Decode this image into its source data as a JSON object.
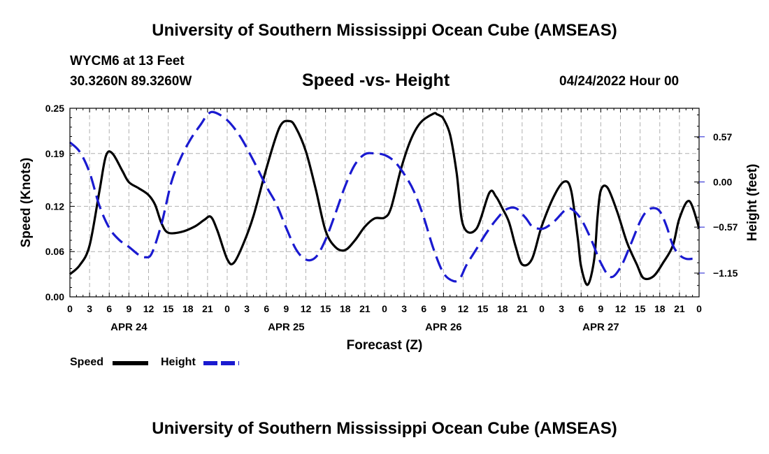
{
  "header": {
    "title": "University of Southern Mississippi Ocean Cube (AMSEAS)",
    "station": "WYCM6 at 13 Feet",
    "coords": "30.3260N  89.3260W",
    "chart_title": "Speed -vs- Height",
    "date": "04/24/2022 Hour 00"
  },
  "footer": {
    "title": "University of Southern Mississippi Ocean Cube (AMSEAS)"
  },
  "legend": {
    "speed_label": "Speed",
    "height_label": "Height"
  },
  "colors": {
    "speed": "#000000",
    "height": "#1a1ad0",
    "grid": "#b0b0b0"
  },
  "chart_data": {
    "type": "line",
    "title": "Speed -vs- Height",
    "xlabel": "Forecast (Z)",
    "ylabel_left": "Speed (Knots)",
    "ylabel_right": "Height (feet)",
    "x_range_hours": [
      0,
      96
    ],
    "x_tick_labels": [
      "0",
      "3",
      "6",
      "9",
      "12",
      "15",
      "18",
      "21",
      "0",
      "3",
      "6",
      "9",
      "12",
      "15",
      "18",
      "21",
      "0",
      "3",
      "6",
      "9",
      "12",
      "15",
      "18",
      "21",
      "0",
      "3",
      "6",
      "9",
      "12",
      "15",
      "18",
      "21",
      "0"
    ],
    "day_labels": [
      {
        "label": "APR 24",
        "hour": 9
      },
      {
        "label": "APR 25",
        "hour": 33
      },
      {
        "label": "APR 26",
        "hour": 57
      },
      {
        "label": "APR 27",
        "hour": 81
      }
    ],
    "left_axis": {
      "ylim": [
        0,
        0.25
      ],
      "ticks": [
        0.0,
        0.06,
        0.12,
        0.19,
        0.25
      ],
      "tick_labels": [
        "0.00",
        "0.06",
        "0.12",
        "0.19",
        "0.25"
      ]
    },
    "right_axis": {
      "ylim": [
        -1.45,
        0.93
      ],
      "ticks": [
        -1.15,
        -0.57,
        0.0,
        0.57
      ],
      "tick_labels": [
        "−1.15",
        "−0.57",
        "0.00",
        "0.57"
      ]
    },
    "grid": true,
    "series": [
      {
        "name": "Speed",
        "axis": "left",
        "style": "solid",
        "x": [
          0,
          1.5,
          3,
          4.5,
          5.5,
          6.5,
          8,
          9,
          10.5,
          12,
          13,
          14,
          15,
          17,
          19,
          20.5,
          21.5,
          22.5,
          24,
          25,
          26.5,
          28,
          30,
          32,
          33.5,
          34.5,
          36,
          37.5,
          39,
          40.5,
          42,
          43.5,
          45,
          46.5,
          48,
          49,
          50.5,
          52,
          53.5,
          55.5,
          56,
          56.5,
          57,
          58,
          59,
          60,
          62,
          64,
          65,
          66,
          67,
          68,
          69,
          70.5,
          72,
          74,
          75.5,
          76.5,
          77.5,
          78,
          79,
          80,
          80.5,
          81,
          82,
          83.5,
          85,
          86.5,
          87.5,
          89,
          90.5,
          92,
          93,
          94.5,
          96
        ],
        "y": [
          0.03,
          0.042,
          0.068,
          0.14,
          0.187,
          0.19,
          0.167,
          0.152,
          0.144,
          0.135,
          0.122,
          0.097,
          0.085,
          0.086,
          0.093,
          0.102,
          0.106,
          0.088,
          0.05,
          0.045,
          0.071,
          0.107,
          0.171,
          0.225,
          0.233,
          0.224,
          0.193,
          0.143,
          0.088,
          0.066,
          0.062,
          0.075,
          0.093,
          0.104,
          0.105,
          0.118,
          0.169,
          0.208,
          0.231,
          0.243,
          0.242,
          0.24,
          0.236,
          0.215,
          0.165,
          0.095,
          0.09,
          0.138,
          0.133,
          0.117,
          0.099,
          0.067,
          0.043,
          0.05,
          0.094,
          0.136,
          0.153,
          0.14,
          0.077,
          0.04,
          0.016,
          0.05,
          0.106,
          0.141,
          0.145,
          0.113,
          0.072,
          0.043,
          0.025,
          0.027,
          0.045,
          0.068,
          0.104,
          0.127,
          0.091
        ]
      },
      {
        "name": "Height",
        "axis": "right",
        "style": "dashed",
        "x": [
          0,
          1.5,
          3,
          4.5,
          6,
          7.5,
          9,
          10.5,
          11.5,
          12.5,
          14,
          15.5,
          17,
          18.5,
          20,
          21,
          22,
          24,
          26,
          28,
          30,
          31.5,
          33,
          34.5,
          36,
          37.5,
          39,
          40.5,
          42,
          43.5,
          45,
          46.5,
          48,
          49.5,
          51,
          52.5,
          54,
          55.5,
          57,
          58.5,
          59.5,
          60.5,
          62,
          63.5,
          65,
          66.5,
          68,
          69.5,
          70.5,
          71.5,
          72.5,
          74,
          75.5,
          76.5,
          78,
          79.5,
          81,
          82.5,
          84,
          85.5,
          87,
          88,
          89,
          90,
          91,
          92,
          93,
          94,
          95
        ],
        "y": [
          0.5,
          0.38,
          0.12,
          -0.3,
          -0.58,
          -0.73,
          -0.82,
          -0.92,
          -0.95,
          -0.9,
          -0.52,
          0.0,
          0.32,
          0.55,
          0.73,
          0.85,
          0.88,
          0.78,
          0.57,
          0.27,
          -0.06,
          -0.28,
          -0.58,
          -0.85,
          -0.98,
          -0.95,
          -0.73,
          -0.4,
          -0.05,
          0.22,
          0.35,
          0.36,
          0.34,
          0.26,
          0.1,
          -0.12,
          -0.45,
          -0.85,
          -1.15,
          -1.25,
          -1.22,
          -1.05,
          -0.85,
          -0.65,
          -0.48,
          -0.35,
          -0.33,
          -0.45,
          -0.56,
          -0.59,
          -0.58,
          -0.49,
          -0.36,
          -0.34,
          -0.47,
          -0.72,
          -1.02,
          -1.2,
          -1.08,
          -0.8,
          -0.5,
          -0.37,
          -0.33,
          -0.37,
          -0.55,
          -0.8,
          -0.92,
          -0.97,
          -0.97
        ]
      }
    ]
  }
}
